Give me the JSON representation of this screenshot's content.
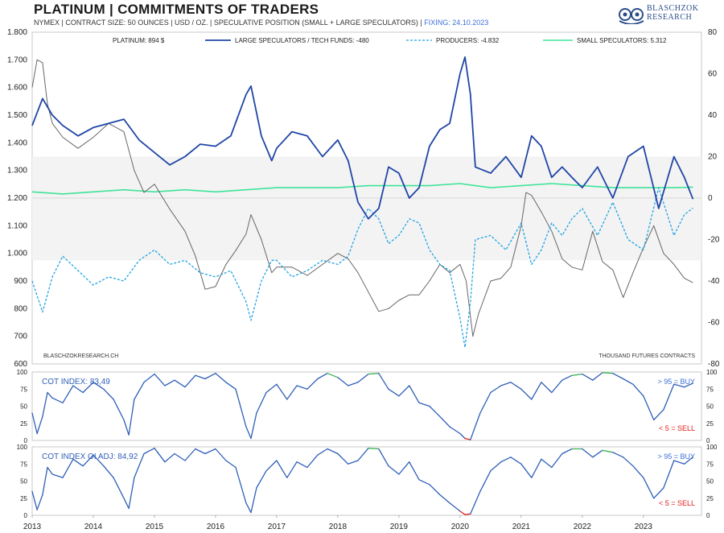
{
  "header": {
    "title": "PLATINUM  |  COMMITMENTS OF TRADERS",
    "subtitle": "NYMEX  |  CONTRACT SIZE: 50 OUNCES  |  USD / OZ.  |  SPECULATIVE POSITION (SMALL + LARGE SPECULATORS)  |",
    "fixing": "FIXING: 24.10.2023"
  },
  "logo": {
    "line1": "BLASCHZOK",
    "line2": "RESEARCH",
    "icon": "owl-logo-icon"
  },
  "colors": {
    "platinum": "#666666",
    "large": "#1f45a6",
    "producers": "#21a3e3",
    "small": "#3fe39a",
    "index_normal": "#2f5fb8",
    "index_buy": "#3db054",
    "index_sell": "#e0201b",
    "buy_text": "#3a6fd8",
    "sell_text": "#e0201b"
  },
  "chart_data": [
    {
      "type": "line",
      "legend": [
        {
          "key": "platinum",
          "label": "PLATINUM: 894 $"
        },
        {
          "key": "large",
          "label": "LARGE SPECULATORS / TECH FUNDS: -480"
        },
        {
          "key": "producers",
          "label": "PRODUCERS: -4.832"
        },
        {
          "key": "small",
          "label": "SMALL SPECULATORS: 5.312"
        }
      ],
      "legend_position": "top",
      "left_axis": {
        "ticks": [
          "1.800",
          "1.700",
          "1.600",
          "1.500",
          "1.400",
          "1.300",
          "1.200",
          "1.100",
          "1.000",
          "900",
          "800",
          "700",
          "600"
        ],
        "ylim": [
          600,
          1800
        ]
      },
      "right_axis": {
        "ticks": [
          "80",
          "60",
          "40",
          "20",
          "0",
          "-20",
          "-40",
          "-60",
          "-80"
        ],
        "ylim": [
          -80,
          80
        ]
      },
      "x_ticks": [
        "2013",
        "2014",
        "2015",
        "2016",
        "2017",
        "2018",
        "2019",
        "2020",
        "2021",
        "2022",
        "2023"
      ],
      "xlim": [
        2013,
        2023.95
      ],
      "source_label": "BLASCHZOKRESEARCH.CH",
      "unit_label": "THOUSAND  FUTURES CONTRACTS",
      "series": [
        {
          "key": "platinum",
          "axis": "left",
          "x": [
            2013,
            2013.08,
            2013.17,
            2013.25,
            2013.33,
            2013.5,
            2013.75,
            2014,
            2014.25,
            2014.5,
            2014.67,
            2014.83,
            2015,
            2015.25,
            2015.5,
            2015.67,
            2015.83,
            2016,
            2016.17,
            2016.33,
            2016.5,
            2016.58,
            2016.75,
            2016.92,
            2017,
            2017.25,
            2017.5,
            2017.75,
            2018,
            2018.17,
            2018.33,
            2018.5,
            2018.67,
            2018.83,
            2019,
            2019.17,
            2019.33,
            2019.5,
            2019.67,
            2019.83,
            2020,
            2020.1,
            2020.21,
            2020.3,
            2020.5,
            2020.67,
            2020.83,
            2021,
            2021.08,
            2021.17,
            2021.33,
            2021.5,
            2021.67,
            2021.83,
            2022,
            2022.17,
            2022.33,
            2022.5,
            2022.67,
            2022.83,
            2023,
            2023.17,
            2023.33,
            2023.5,
            2023.67,
            2023.81
          ],
          "y": [
            1600,
            1700,
            1690,
            1540,
            1470,
            1420,
            1380,
            1420,
            1470,
            1440,
            1300,
            1220,
            1250,
            1160,
            1080,
            990,
            870,
            880,
            960,
            1010,
            1070,
            1140,
            1050,
            930,
            950,
            950,
            920,
            960,
            1000,
            980,
            930,
            860,
            790,
            800,
            830,
            850,
            850,
            900,
            960,
            930,
            960,
            900,
            700,
            780,
            900,
            910,
            950,
            1100,
            1220,
            1210,
            1150,
            1080,
            980,
            950,
            940,
            1080,
            970,
            940,
            840,
            930,
            1020,
            1100,
            1000,
            960,
            910,
            894
          ]
        },
        {
          "key": "large",
          "axis": "right",
          "x": [
            2013,
            2013.17,
            2013.33,
            2013.5,
            2013.75,
            2014,
            2014.25,
            2014.5,
            2014.75,
            2015,
            2015.25,
            2015.5,
            2015.75,
            2016,
            2016.25,
            2016.5,
            2016.58,
            2016.75,
            2016.92,
            2017,
            2017.25,
            2017.5,
            2017.75,
            2018,
            2018.17,
            2018.33,
            2018.5,
            2018.67,
            2018.83,
            2019,
            2019.17,
            2019.33,
            2019.5,
            2019.67,
            2019.83,
            2020,
            2020.08,
            2020.17,
            2020.25,
            2020.5,
            2020.75,
            2021,
            2021.17,
            2021.33,
            2021.5,
            2021.67,
            2021.83,
            2022,
            2022.25,
            2022.5,
            2022.75,
            2023,
            2023.25,
            2023.5,
            2023.67,
            2023.81
          ],
          "y": [
            35,
            48,
            40,
            35,
            30,
            34,
            36,
            38,
            28,
            22,
            16,
            20,
            26,
            25,
            30,
            50,
            54,
            30,
            18,
            24,
            32,
            30,
            20,
            28,
            18,
            -2,
            -10,
            -5,
            15,
            12,
            0,
            5,
            25,
            33,
            36,
            60,
            68,
            50,
            15,
            12,
            20,
            10,
            30,
            25,
            10,
            15,
            10,
            5,
            15,
            0,
            20,
            25,
            -5,
            20,
            10,
            -0.5
          ]
        },
        {
          "key": "producers",
          "axis": "right",
          "x": [
            2013,
            2013.17,
            2013.33,
            2013.5,
            2013.75,
            2014,
            2014.25,
            2014.5,
            2014.75,
            2015,
            2015.25,
            2015.5,
            2015.75,
            2016,
            2016.25,
            2016.5,
            2016.58,
            2016.75,
            2016.92,
            2017,
            2017.25,
            2017.5,
            2017.75,
            2018,
            2018.17,
            2018.33,
            2018.5,
            2018.67,
            2018.83,
            2019,
            2019.17,
            2019.33,
            2019.5,
            2019.67,
            2019.83,
            2020,
            2020.08,
            2020.17,
            2020.25,
            2020.5,
            2020.75,
            2021,
            2021.17,
            2021.33,
            2021.5,
            2021.67,
            2021.83,
            2022,
            2022.25,
            2022.5,
            2022.75,
            2023,
            2023.25,
            2023.5,
            2023.67,
            2023.81
          ],
          "y": [
            -40,
            -55,
            -38,
            -28,
            -35,
            -42,
            -38,
            -40,
            -30,
            -25,
            -32,
            -30,
            -36,
            -38,
            -35,
            -50,
            -59,
            -40,
            -30,
            -30,
            -38,
            -35,
            -30,
            -32,
            -28,
            -15,
            -5,
            -10,
            -22,
            -18,
            -10,
            -12,
            -25,
            -32,
            -35,
            -58,
            -72,
            -50,
            -20,
            -18,
            -25,
            -12,
            -32,
            -25,
            -12,
            -18,
            -10,
            -5,
            -18,
            -2,
            -20,
            -25,
            5,
            -18,
            -8,
            -4.8
          ]
        },
        {
          "key": "small",
          "axis": "right",
          "x": [
            2013,
            2013.5,
            2014,
            2014.5,
            2015,
            2015.5,
            2016,
            2016.5,
            2017,
            2017.5,
            2018,
            2018.5,
            2019,
            2019.5,
            2020,
            2020.25,
            2020.5,
            2021,
            2021.5,
            2022,
            2022.5,
            2023,
            2023.5,
            2023.81
          ],
          "y": [
            3,
            2,
            3,
            4,
            3,
            4,
            3,
            4,
            5,
            5,
            5,
            6,
            6,
            6,
            7,
            6,
            5,
            6,
            7,
            6,
            5,
            5,
            5,
            5.3
          ]
        }
      ]
    },
    {
      "type": "line",
      "title": "COT INDEX: 83,49",
      "ylim": [
        0,
        100
      ],
      "y_ticks": [
        "100",
        "75",
        "50",
        "25",
        "0"
      ],
      "buy_label": "> 95 = BUY",
      "sell_label": "< 5 = SELL",
      "thresholds": {
        "buy": 95,
        "sell": 5
      },
      "x": [
        2013,
        2013.08,
        2013.17,
        2013.25,
        2013.33,
        2013.5,
        2013.67,
        2013.83,
        2014,
        2014.17,
        2014.33,
        2014.5,
        2014.58,
        2014.67,
        2014.83,
        2015,
        2015.17,
        2015.33,
        2015.5,
        2015.67,
        2015.83,
        2016,
        2016.17,
        2016.33,
        2016.5,
        2016.58,
        2016.67,
        2016.83,
        2017,
        2017.17,
        2017.33,
        2017.5,
        2017.67,
        2017.83,
        2018,
        2018.17,
        2018.33,
        2018.5,
        2018.67,
        2018.83,
        2019,
        2019.17,
        2019.33,
        2019.5,
        2019.67,
        2019.83,
        2020,
        2020.08,
        2020.17,
        2020.33,
        2020.5,
        2020.67,
        2020.83,
        2021,
        2021.17,
        2021.33,
        2021.5,
        2021.67,
        2021.83,
        2022,
        2022.17,
        2022.33,
        2022.5,
        2022.67,
        2022.83,
        2023,
        2023.17,
        2023.33,
        2023.5,
        2023.67,
        2023.81
      ],
      "y": [
        40,
        10,
        35,
        70,
        62,
        55,
        80,
        70,
        85,
        75,
        60,
        30,
        8,
        60,
        85,
        97,
        80,
        88,
        78,
        95,
        90,
        98,
        85,
        75,
        20,
        3,
        40,
        70,
        82,
        60,
        80,
        75,
        90,
        98,
        92,
        80,
        85,
        97,
        98,
        75,
        65,
        80,
        55,
        50,
        35,
        20,
        10,
        3,
        1,
        40,
        70,
        80,
        85,
        75,
        60,
        85,
        70,
        88,
        95,
        97,
        88,
        99,
        98,
        90,
        82,
        65,
        30,
        45,
        82,
        78,
        83.49
      ]
    },
    {
      "type": "line",
      "title": "COT INDEX OI ADJ: 84,92",
      "ylim": [
        0,
        100
      ],
      "y_ticks": [
        "100",
        "75",
        "50",
        "25",
        "0"
      ],
      "buy_label": "> 95 = BUY",
      "sell_label": "< 5 = SELL",
      "thresholds": {
        "buy": 95,
        "sell": 5
      },
      "x": [
        2013,
        2013.08,
        2013.17,
        2013.25,
        2013.33,
        2013.5,
        2013.67,
        2013.83,
        2014,
        2014.17,
        2014.33,
        2014.5,
        2014.58,
        2014.67,
        2014.83,
        2015,
        2015.17,
        2015.33,
        2015.5,
        2015.67,
        2015.83,
        2016,
        2016.17,
        2016.33,
        2016.5,
        2016.58,
        2016.67,
        2016.83,
        2017,
        2017.17,
        2017.33,
        2017.5,
        2017.67,
        2017.83,
        2018,
        2018.17,
        2018.33,
        2018.5,
        2018.67,
        2018.83,
        2019,
        2019.17,
        2019.33,
        2019.5,
        2019.67,
        2019.83,
        2020,
        2020.08,
        2020.17,
        2020.33,
        2020.5,
        2020.67,
        2020.83,
        2021,
        2021.17,
        2021.33,
        2021.5,
        2021.67,
        2021.83,
        2022,
        2022.17,
        2022.33,
        2022.5,
        2022.67,
        2022.83,
        2023,
        2023.17,
        2023.33,
        2023.5,
        2023.67,
        2023.81
      ],
      "y": [
        35,
        8,
        30,
        70,
        60,
        55,
        82,
        72,
        88,
        72,
        55,
        25,
        10,
        55,
        90,
        98,
        78,
        90,
        80,
        97,
        90,
        97,
        80,
        70,
        18,
        4,
        40,
        65,
        80,
        55,
        78,
        70,
        88,
        97,
        90,
        75,
        80,
        98,
        97,
        72,
        60,
        78,
        52,
        45,
        30,
        18,
        6,
        1,
        2,
        35,
        65,
        78,
        85,
        75,
        55,
        82,
        70,
        90,
        97,
        97,
        85,
        95,
        92,
        85,
        72,
        55,
        25,
        40,
        80,
        75,
        84.92
      ]
    }
  ],
  "x_axis_labels": [
    "2013",
    "2014",
    "2015",
    "2016",
    "2017",
    "2018",
    "2019",
    "2020",
    "2021",
    "2022",
    "2023"
  ]
}
